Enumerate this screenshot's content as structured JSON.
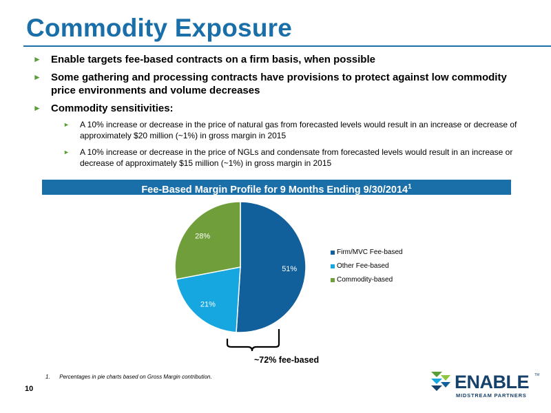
{
  "page": {
    "title": "Commodity Exposure",
    "page_number": "10"
  },
  "bullets": [
    {
      "text": "Enable targets fee-based contracts on a firm basis, when possible"
    },
    {
      "text": "Some gathering and processing contracts have provisions to protect against low commodity price environments and volume decreases"
    },
    {
      "text": "Commodity sensitivities:",
      "subitems": [
        {
          "text": "A 10% increase or decrease in the price of natural gas from forecasted levels would result in an increase or decrease of approximately $20 million (~1%) in gross margin in 2015"
        },
        {
          "text": "A 10% increase or decrease in the price of NGLs and condensate from forecasted levels would result in an increase or decrease of approximately $15 million (~1%) in gross margin in 2015"
        }
      ]
    }
  ],
  "banner": {
    "text": "Fee-Based Margin Profile for 9 Months Ending 9/30/2014",
    "superscript": "1"
  },
  "chart_data": {
    "type": "pie",
    "title": "Fee-Based Margin Profile for 9 Months Ending 9/30/2014",
    "categories": [
      "Firm/MVC Fee-based",
      "Other Fee-based",
      "Commodity-based"
    ],
    "values": [
      51,
      21,
      28
    ],
    "labels": [
      "51%",
      "21%",
      "28%"
    ],
    "colors": [
      "#11609c",
      "#17a7e0",
      "#6f9e3a"
    ],
    "legend_position": "right",
    "annotation": "~72% fee-based"
  },
  "footnote": {
    "number": "1.",
    "text": "Percentages in pie charts based on Gross Margin contribution."
  },
  "logo": {
    "brand_en": "EN",
    "brand_able": "ABLE",
    "subtitle": "MIDSTREAM PARTNERS",
    "tm": "TM"
  },
  "colors": {
    "title": "#1a6fa8",
    "bullet_arrow": "#5a9e3a",
    "banner": "#1a6fa8"
  }
}
